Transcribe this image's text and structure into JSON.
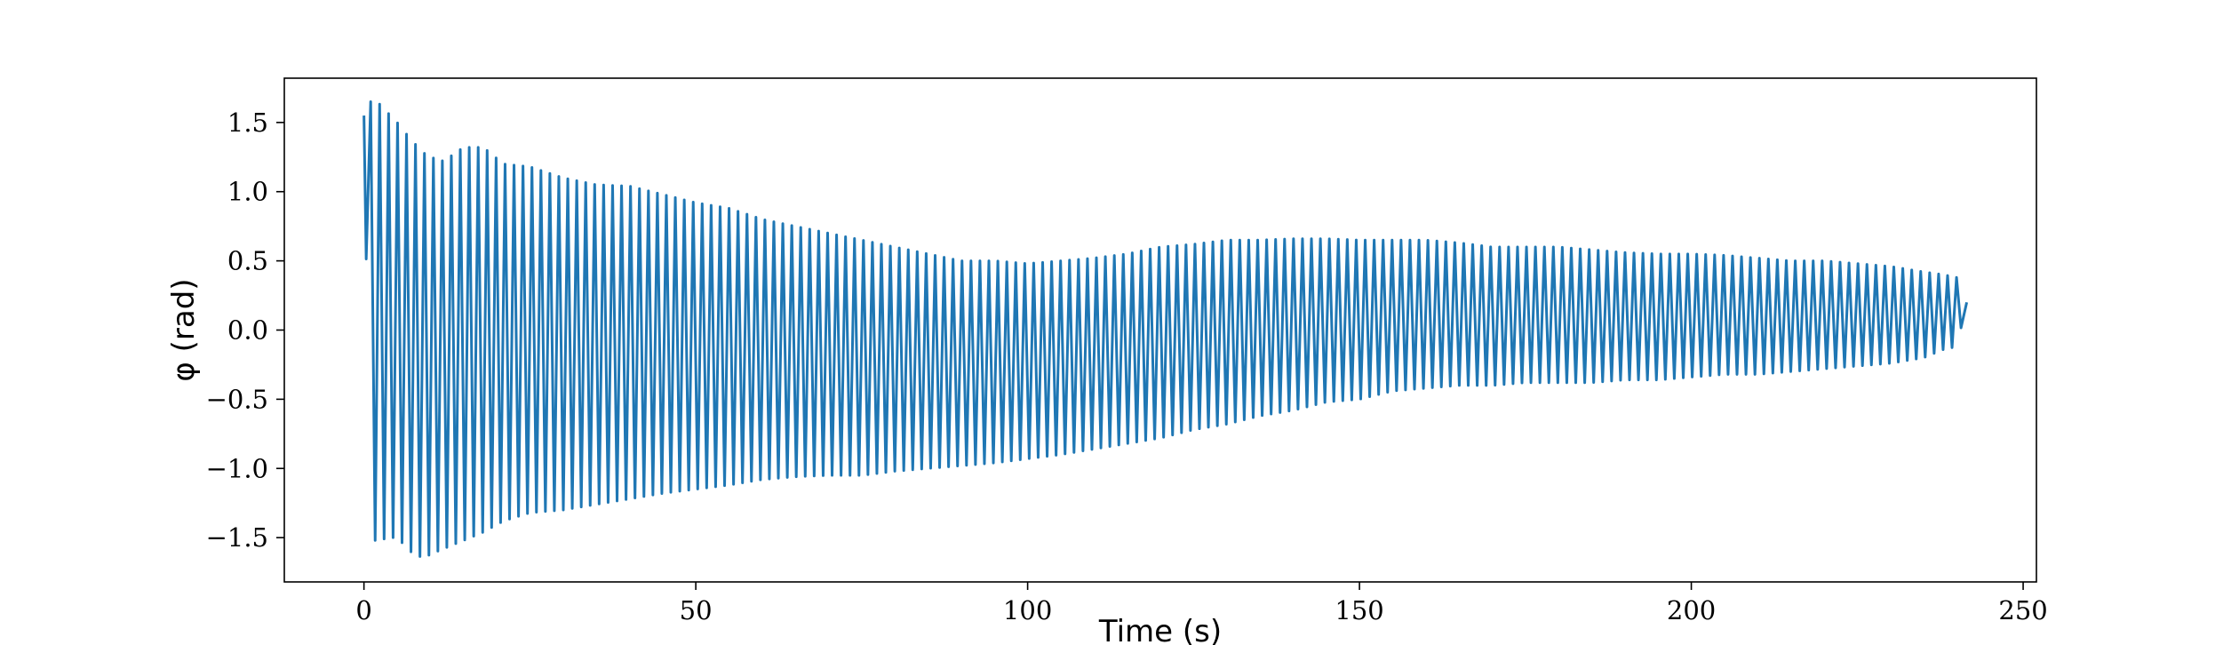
{
  "chart_data": {
    "type": "line",
    "title": "",
    "xlabel": "Time (s)",
    "ylabel": "φ (rad)",
    "xlim": [
      -12,
      252
    ],
    "ylim": [
      -1.82,
      1.82
    ],
    "xticks": [
      0,
      50,
      100,
      150,
      200,
      250
    ],
    "xtick_labels": [
      "0",
      "50",
      "100",
      "150",
      "200",
      "250"
    ],
    "yticks": [
      -1.5,
      -1.0,
      -0.5,
      0.0,
      0.5,
      1.0,
      1.5
    ],
    "ytick_labels": [
      "−1.5",
      "−1.0",
      "−0.5",
      "0.0",
      "0.5",
      "1.0",
      "1.5"
    ],
    "grid": false,
    "legend": "none",
    "color": "#1f77b4",
    "series": [
      {
        "period": 1.35,
        "x_start": 0,
        "x_end": 241.5,
        "start_value": 1.55,
        "end_value": 0.2,
        "envelope": {
          "t": [
            0,
            1,
            2,
            4,
            5,
            7,
            9,
            10,
            12,
            15,
            18,
            21,
            25,
            30,
            35,
            40,
            45,
            50,
            55,
            60,
            65,
            70,
            75,
            80,
            85,
            90,
            95,
            100,
            105,
            110,
            115,
            120,
            125,
            130,
            135,
            140,
            145,
            150,
            155,
            160,
            165,
            170,
            175,
            180,
            185,
            190,
            195,
            200,
            205,
            210,
            215,
            220,
            225,
            230,
            235,
            238,
            240,
            241.5
          ],
          "max": [
            1.55,
            1.65,
            1.65,
            1.55,
            1.5,
            1.38,
            1.28,
            1.25,
            1.22,
            1.32,
            1.32,
            1.2,
            1.18,
            1.1,
            1.05,
            1.04,
            0.98,
            0.92,
            0.88,
            0.8,
            0.75,
            0.7,
            0.65,
            0.6,
            0.55,
            0.5,
            0.5,
            0.48,
            0.5,
            0.52,
            0.55,
            0.6,
            0.62,
            0.65,
            0.65,
            0.66,
            0.66,
            0.65,
            0.65,
            0.65,
            0.63,
            0.6,
            0.6,
            0.6,
            0.58,
            0.56,
            0.55,
            0.55,
            0.54,
            0.52,
            0.5,
            0.5,
            0.48,
            0.46,
            0.42,
            0.4,
            0.38,
            0.2
          ],
          "min": [
            1.55,
            -1.52,
            -1.52,
            -1.5,
            -1.5,
            -1.6,
            -1.65,
            -1.62,
            -1.58,
            -1.52,
            -1.46,
            -1.38,
            -1.32,
            -1.3,
            -1.26,
            -1.22,
            -1.18,
            -1.15,
            -1.12,
            -1.08,
            -1.06,
            -1.05,
            -1.05,
            -1.02,
            -1.0,
            -0.98,
            -0.96,
            -0.93,
            -0.9,
            -0.86,
            -0.82,
            -0.78,
            -0.72,
            -0.68,
            -0.62,
            -0.58,
            -0.52,
            -0.5,
            -0.44,
            -0.42,
            -0.4,
            -0.4,
            -0.38,
            -0.38,
            -0.38,
            -0.36,
            -0.36,
            -0.34,
            -0.32,
            -0.32,
            -0.3,
            -0.28,
            -0.26,
            -0.24,
            -0.2,
            -0.14,
            -0.12,
            0.2
          ]
        }
      }
    ]
  }
}
